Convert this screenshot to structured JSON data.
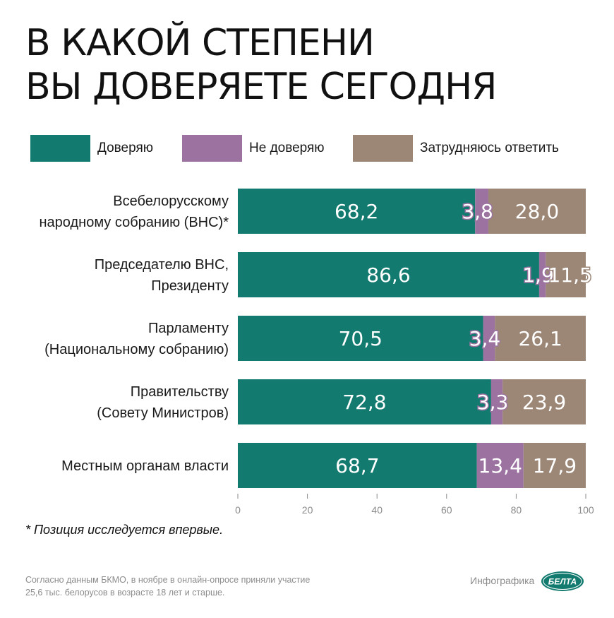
{
  "title_lines": [
    "В КАКОЙ СТЕПЕНИ",
    "ВЫ ДОВЕРЯЕТЕ СЕГОДНЯ"
  ],
  "legend": [
    {
      "label": "Доверяю",
      "color": "#127a6f"
    },
    {
      "label": "Не доверяю",
      "color": "#9b72a0"
    },
    {
      "label": "Затрудняюсь ответить",
      "color": "#9c8777"
    }
  ],
  "chart_data": {
    "type": "bar",
    "orientation": "horizontal",
    "stacked": true,
    "categories": [
      [
        "Всебелорусскому",
        "народному собранию (ВНС)*"
      ],
      [
        "Председателю ВНС,",
        "Президенту"
      ],
      [
        "Парламенту",
        "(Национальному собранию)"
      ],
      [
        "Правительству",
        "(Совету Министров)"
      ],
      [
        "Местным органам власти"
      ]
    ],
    "series": [
      {
        "name": "Доверяю",
        "color": "#127a6f",
        "values": [
          68.2,
          86.6,
          70.5,
          72.8,
          68.7
        ],
        "labels": [
          "68,2",
          "86,6",
          "70,5",
          "72,8",
          "68,7"
        ]
      },
      {
        "name": "Не доверяю",
        "color": "#9b72a0",
        "values": [
          3.8,
          1.9,
          3.4,
          3.3,
          13.4
        ],
        "labels": [
          "3,8",
          "1,9",
          "3,4",
          "3,3",
          "13,4"
        ]
      },
      {
        "name": "Затрудняюсь ответить",
        "color": "#9c8777",
        "values": [
          28.0,
          11.5,
          26.1,
          23.9,
          17.9
        ],
        "labels": [
          "28,0",
          "11,5",
          "26,1",
          "23,9",
          "17,9"
        ]
      }
    ],
    "xlim": [
      0,
      100
    ],
    "xticks": [
      0,
      20,
      40,
      60,
      80,
      100
    ],
    "grid": false,
    "legend_position": "top"
  },
  "footnote": "* Позиция исследуется впервые.",
  "source": "Согласно данным БКМО, в ноябре в онлайн-опросе приняли участие 25,6 тыс. белорусов в возрасте 18 лет и старше.",
  "credit": "Инфографика",
  "logo_text": "БЕЛТА"
}
